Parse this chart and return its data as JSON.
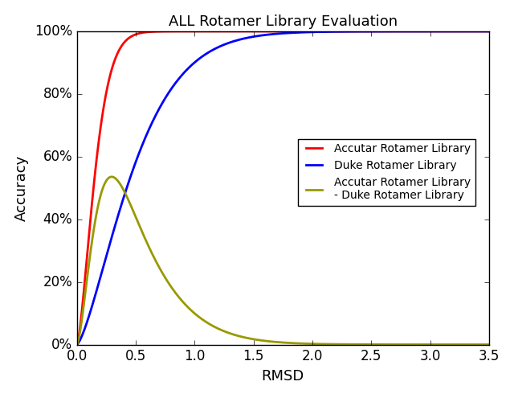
{
  "title": "ALL Rotamer Library Evaluation",
  "xlabel": "RMSD",
  "ylabel": "Accuracy",
  "xlim": [
    0,
    3.5
  ],
  "ylim": [
    0,
    1.0
  ],
  "xticks": [
    0.0,
    0.5,
    1.0,
    1.5,
    2.0,
    2.5,
    3.0,
    3.5
  ],
  "yticks": [
    0.0,
    0.2,
    0.4,
    0.6,
    0.8,
    1.0
  ],
  "line_colors": [
    "#ff0000",
    "#0000ff",
    "#999900"
  ],
  "line_width": 2.0,
  "legend_labels": [
    "Accutar Rotamer Library",
    "Duke Rotamer Library",
    "Accutar Rotamer Library\n- Duke Rotamer Library"
  ],
  "legend_loc": "center right",
  "accutar_scale": 0.18,
  "accutar_k": 1.5,
  "duke_scale": 0.55,
  "duke_k": 1.4
}
